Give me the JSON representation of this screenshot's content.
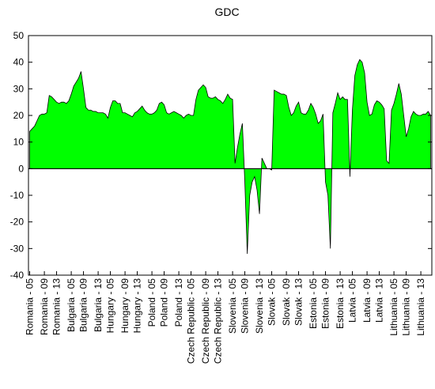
{
  "chart_data": {
    "type": "area",
    "title": "GDC",
    "xlabel": "",
    "ylabel": "",
    "ylim": [
      -40,
      50
    ],
    "y_ticks": [
      50,
      40,
      30,
      20,
      10,
      0,
      -10,
      -20,
      -30,
      -40
    ],
    "grid": false,
    "legend": "none",
    "fill_color": "#00ff00",
    "line_color": "#000000",
    "x_tick_labels": [
      "Romania - 05",
      "Romania - 09",
      "Romania - 13",
      "Bulgaria - 05",
      "Bulgaria - 09",
      "Bulgaria - 13",
      "Hungary - 05",
      "Hungary - 09",
      "Hungary - 13",
      "Poland - 05",
      "Poland - 09",
      "Poland - 13",
      "Czech Republic - 05",
      "Czech Republic - 09",
      "Czech Republic - 13",
      "Slovenia - 05",
      "Slovenia - 09",
      "Slovenia - 13",
      "Slovak - 05",
      "Slovak - 09",
      "Slovak - 13",
      "Estonia - 05",
      "Estonia - 09",
      "Estonia - 13",
      "Latvia - 05",
      "Latvia - 09",
      "Latvia - 13",
      "Lithuania - 05",
      "Lithuania - 09",
      "Lithuania - 13"
    ],
    "series": [
      {
        "values": [
          14,
          15,
          16,
          18,
          20,
          20.5,
          20.5,
          21,
          27.5,
          27,
          26,
          25,
          24.5,
          25,
          25,
          24.5,
          25.5,
          28,
          31,
          32.5,
          34,
          36.5,
          30,
          23,
          22,
          22,
          21.5,
          21.5,
          21,
          21,
          21,
          20.5,
          19,
          23,
          25.5,
          25.5,
          24.5,
          24.5,
          21,
          21,
          20.5,
          20,
          19.5,
          21,
          21.5,
          22.5,
          23.5,
          22,
          21,
          20.5,
          20.5,
          21,
          22,
          24.5,
          25,
          24,
          21,
          20.5,
          21,
          21.5,
          21,
          20.5,
          20,
          19,
          20,
          20.5,
          20,
          20,
          26,
          29.5,
          30.5,
          31.5,
          30.5,
          27,
          26.5,
          26.5,
          27,
          26,
          25.5,
          24.5,
          26,
          28,
          26.5,
          26,
          2,
          8,
          13,
          17,
          -5,
          -32,
          -10,
          -5,
          -3,
          -8,
          -17,
          4,
          2,
          0,
          0,
          -0.5,
          29.5,
          29,
          28.5,
          28,
          28,
          27.5,
          23,
          20,
          21,
          23.5,
          25,
          21,
          20.5,
          20.5,
          22,
          24.5,
          23,
          20.5,
          17,
          18,
          20.5,
          -5,
          -10,
          -30,
          21,
          24.5,
          28.5,
          26,
          27,
          26,
          26,
          -3,
          22,
          35,
          39,
          41,
          40,
          36,
          25,
          20,
          20.5,
          24,
          25.5,
          25,
          24,
          22.5,
          3,
          2,
          22,
          24.5,
          28,
          32,
          28,
          20,
          12,
          15,
          19.5,
          21.5,
          20.5,
          20,
          20,
          20.5,
          20.5,
          21.5,
          20
        ]
      }
    ]
  }
}
